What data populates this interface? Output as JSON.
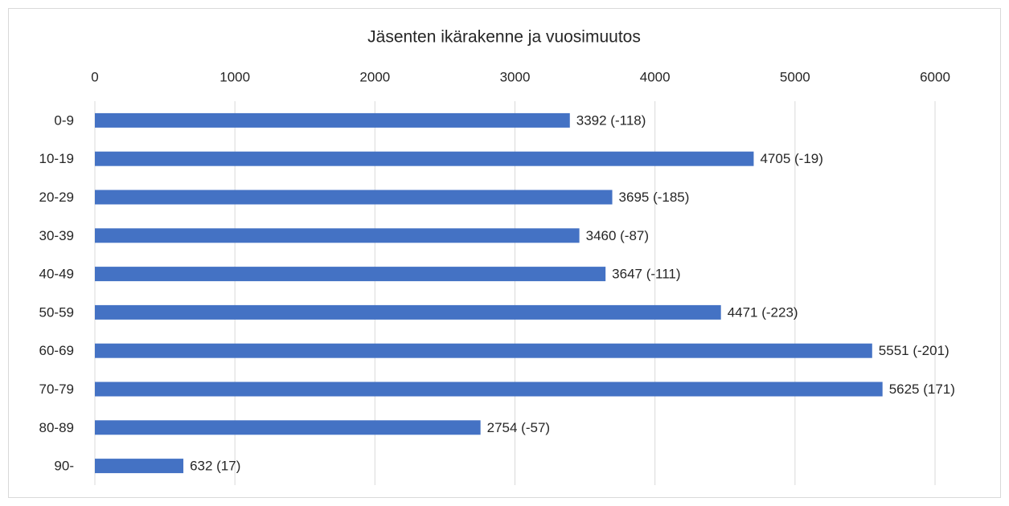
{
  "chart_data": {
    "type": "bar",
    "orientation": "horizontal",
    "title": "Jäsenten ikärakenne ja vuosimuutos",
    "categories": [
      "0-9",
      "10-19",
      "20-29",
      "30-39",
      "40-49",
      "50-59",
      "60-69",
      "70-79",
      "80-89",
      "90-"
    ],
    "values": [
      3392,
      4705,
      3695,
      3460,
      3647,
      4471,
      5551,
      5625,
      2754,
      632
    ],
    "value_labels": [
      "3392 (-118)",
      "4705 (-19)",
      "3695 (-185)",
      "3460 (-87)",
      "3647 (-111)",
      "4471 (-223)",
      "5551 (-201)",
      "5625 (171)",
      "2754 (-57)",
      "632 (17)"
    ],
    "color": "#4472c4",
    "xlim": [
      0,
      6000
    ],
    "xticks": [
      0,
      1000,
      2000,
      3000,
      4000,
      5000,
      6000
    ],
    "grid": true
  }
}
